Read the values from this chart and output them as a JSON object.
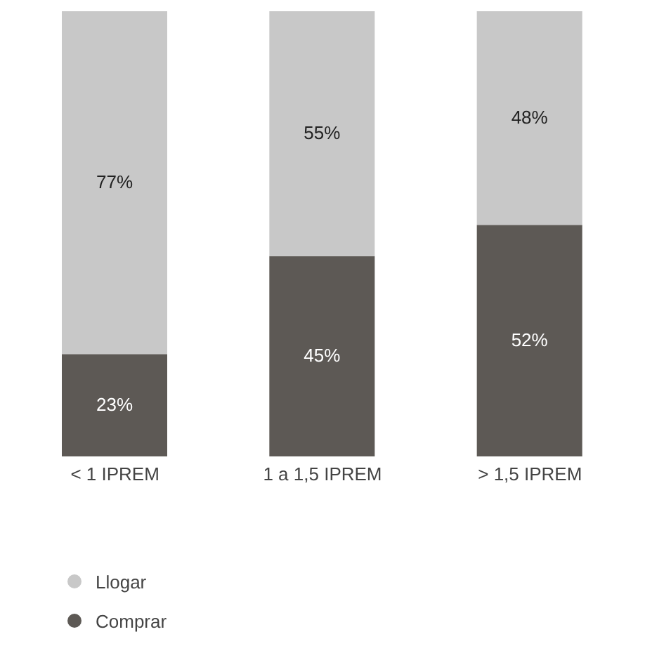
{
  "chart_data": {
    "type": "bar",
    "stacked": true,
    "categories": [
      "< 1 IPREM",
      "1 a 1,5 IPREM",
      "> 1,5 IPREM"
    ],
    "series": [
      {
        "name": "Comprar",
        "color": "#5d5955",
        "values": [
          23,
          45,
          52
        ],
        "value_labels": [
          "23%",
          "45%",
          "52%"
        ]
      },
      {
        "name": "Llogar",
        "color": "#c8c8c8",
        "values": [
          77,
          55,
          48
        ],
        "value_labels": [
          "77%",
          "55%",
          "48%"
        ]
      }
    ],
    "legend": "bottom",
    "grid": false
  }
}
